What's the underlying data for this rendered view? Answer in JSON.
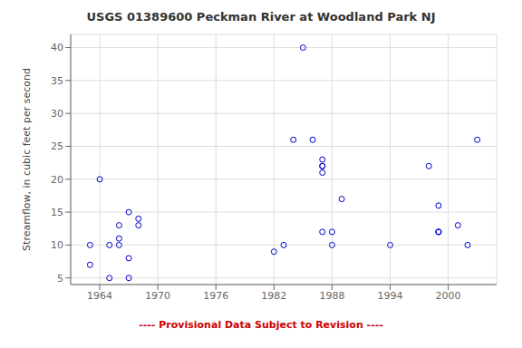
{
  "chart_data": {
    "type": "scatter",
    "title": "USGS 01389600 Peckman River at Woodland Park NJ",
    "ylabel": "Streamflow, in cubic feet per second",
    "annotations": [
      {
        "text": "---- Provisional Data Subject to Revision ----",
        "color": "#cc0000"
      }
    ],
    "color": "#0000cc",
    "marker": "hollow_circle",
    "grid": true,
    "xlim": [
      1961,
      2005
    ],
    "ylim": [
      4,
      42
    ],
    "xticks": [
      1964,
      1970,
      1976,
      1982,
      1988,
      1994,
      2000
    ],
    "yticks": [
      5,
      10,
      15,
      20,
      25,
      30,
      35,
      40
    ],
    "x": [
      1963,
      1963,
      1964,
      1965,
      1965,
      1966,
      1966,
      1966,
      1967,
      1967,
      1967,
      1968,
      1968,
      1982,
      1983,
      1984,
      1985,
      1986,
      1987,
      1987,
      1987,
      1987,
      1987,
      1988,
      1988,
      1989,
      1994,
      1998,
      1999,
      1999,
      1999,
      1999,
      2001,
      2002,
      2003
    ],
    "values": [
      10,
      7,
      20,
      10,
      5,
      13,
      10,
      11,
      15,
      8,
      5,
      13,
      14,
      9,
      10,
      26,
      40,
      26,
      12,
      22,
      22,
      23,
      21,
      12,
      10,
      17,
      10,
      22,
      16,
      12,
      12,
      12,
      13,
      10,
      26
    ]
  }
}
